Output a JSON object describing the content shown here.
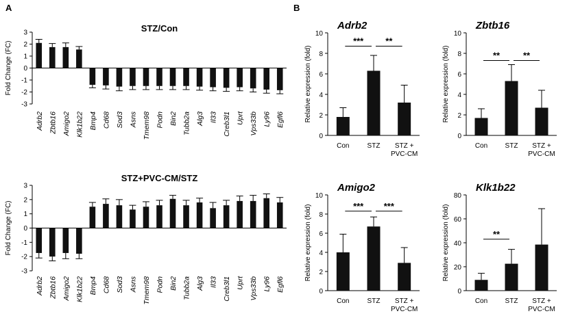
{
  "panel_labels": {
    "a": "A",
    "b": "B"
  },
  "chart_data": [
    {
      "id": "a1",
      "type": "bar",
      "title": "STZ/Con",
      "ylabel": "Fold Change (FC)",
      "ylim": [
        -3,
        3
      ],
      "yticks": [
        -3,
        -2,
        -1,
        0,
        1,
        2,
        3
      ],
      "categories": [
        "Adrb2",
        "Zbtb16",
        "Amigo2",
        "Klk1b22",
        "Bmp4",
        "Cd68",
        "Sod3",
        "Asns",
        "Tmem98",
        "Podn",
        "Bin2",
        "Tubb2a",
        "Alg3",
        "Il33",
        "Creb3l1",
        "Uprt",
        "Vps33b",
        "Ly96",
        "Egfl6"
      ],
      "values": [
        2.1,
        1.75,
        1.75,
        1.55,
        -1.4,
        -1.45,
        -1.55,
        -1.5,
        -1.5,
        -1.5,
        -1.5,
        -1.5,
        -1.55,
        -1.6,
        -1.65,
        -1.6,
        -1.7,
        -1.8,
        -1.85
      ],
      "errors": [
        0.3,
        0.3,
        0.35,
        0.25,
        0.25,
        0.3,
        0.35,
        0.3,
        0.3,
        0.3,
        0.3,
        0.3,
        0.3,
        0.3,
        0.3,
        0.3,
        0.3,
        0.3,
        0.3
      ],
      "grid": false,
      "legend": "none"
    },
    {
      "id": "a2",
      "type": "bar",
      "title": "STZ+PVC-CM/STZ",
      "ylabel": "Fold Change (FC)",
      "ylim": [
        -3,
        3
      ],
      "yticks": [
        -3,
        -2,
        -1,
        0,
        1,
        2,
        3
      ],
      "categories": [
        "Adrb2",
        "Zbtb16",
        "Amigo2",
        "Klk1b22",
        "Bmp4",
        "Cd68",
        "Sod3",
        "Asns",
        "Tmem98",
        "Podn",
        "Bin2",
        "Tubb2a",
        "Alg3",
        "Il33",
        "Creb3l1",
        "Uprt",
        "Vps33b",
        "Ly96",
        "Egfl6"
      ],
      "values": [
        -1.75,
        -2.0,
        -1.75,
        -1.8,
        1.5,
        1.7,
        1.6,
        1.3,
        1.5,
        1.6,
        2.05,
        1.6,
        1.8,
        1.4,
        1.6,
        1.9,
        1.9,
        2.1,
        1.8
      ],
      "errors": [
        0.35,
        0.3,
        0.4,
        0.35,
        0.3,
        0.35,
        0.4,
        0.3,
        0.35,
        0.35,
        0.25,
        0.35,
        0.3,
        0.4,
        0.35,
        0.35,
        0.4,
        0.3,
        0.35
      ],
      "grid": false,
      "legend": "none"
    },
    {
      "id": "b1",
      "type": "bar",
      "title": "Adrb2",
      "ylabel": "Relative expression (fold)",
      "ylim": [
        0,
        10
      ],
      "yticks": [
        0,
        2,
        4,
        6,
        8,
        10
      ],
      "categories": [
        "Con",
        "STZ",
        "STZ +\nPVC-CM"
      ],
      "values": [
        1.8,
        6.3,
        3.2
      ],
      "errors": [
        0.9,
        1.5,
        1.7
      ],
      "significance": [
        {
          "from": 0,
          "to": 1,
          "label": "***",
          "y": 8.7
        },
        {
          "from": 1,
          "to": 2,
          "label": "**",
          "y": 8.7
        }
      ],
      "grid": false,
      "legend": "none"
    },
    {
      "id": "b2",
      "type": "bar",
      "title": "Zbtb16",
      "ylabel": "Relative expression (fold)",
      "ylim": [
        0,
        10
      ],
      "yticks": [
        0,
        2,
        4,
        6,
        8,
        10
      ],
      "categories": [
        "Con",
        "STZ",
        "STZ +\nPVC-CM"
      ],
      "values": [
        1.7,
        5.3,
        2.7
      ],
      "errors": [
        0.9,
        1.6,
        1.7
      ],
      "significance": [
        {
          "from": 0,
          "to": 1,
          "label": "**",
          "y": 7.3
        },
        {
          "from": 1,
          "to": 2,
          "label": "**",
          "y": 7.3
        }
      ],
      "grid": false,
      "legend": "none"
    },
    {
      "id": "b3",
      "type": "bar",
      "title": "Amigo2",
      "ylabel": "Relative expression (fold)",
      "ylim": [
        0,
        10
      ],
      "yticks": [
        0,
        2,
        4,
        6,
        8,
        10
      ],
      "categories": [
        "Con",
        "STZ",
        "STZ +\nPVC-CM"
      ],
      "values": [
        4.0,
        6.7,
        2.9
      ],
      "errors": [
        1.9,
        1.0,
        1.6
      ],
      "significance": [
        {
          "from": 0,
          "to": 1,
          "label": "***",
          "y": 8.3
        },
        {
          "from": 1,
          "to": 2,
          "label": "***",
          "y": 8.3
        }
      ],
      "grid": false,
      "legend": "none"
    },
    {
      "id": "b4",
      "type": "bar",
      "title": "Klk1b22",
      "ylabel": "Relative expression (fold)",
      "ylim": [
        0,
        80
      ],
      "yticks": [
        0,
        20,
        40,
        60,
        80
      ],
      "categories": [
        "Con",
        "STZ",
        "STZ +\nPVC-CM"
      ],
      "values": [
        9,
        22.5,
        38.5
      ],
      "errors": [
        5.5,
        12,
        30
      ],
      "significance": [
        {
          "from": 0,
          "to": 1,
          "label": "**",
          "y": 43
        }
      ],
      "grid": false,
      "legend": "none"
    }
  ]
}
